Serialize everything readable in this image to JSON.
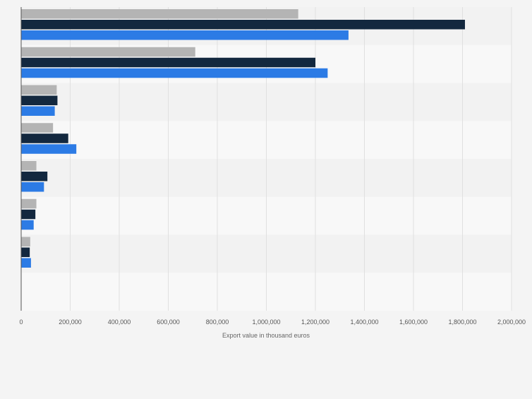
{
  "chart_data": {
    "type": "bar",
    "orientation": "horizontal",
    "xlabel": "Export value in thousand euros",
    "xlim": [
      0,
      2000000
    ],
    "xticks": [
      0,
      200000,
      400000,
      600000,
      800000,
      1000000,
      1200000,
      1400000,
      1600000,
      1800000,
      2000000
    ],
    "xtick_labels": [
      "0",
      "200,000",
      "400,000",
      "600,000",
      "800,000",
      "1,000,000",
      "1,200,000",
      "1,400,000",
      "1,600,000",
      "1,800,000",
      "2,000,000"
    ],
    "grid": true,
    "category_count": 8,
    "series": [
      {
        "color": "#b4b4b4",
        "values": [
          1130000,
          710000,
          145000,
          130000,
          62000,
          62000,
          37000,
          null
        ]
      },
      {
        "color": "#13283f",
        "values": [
          1810000,
          1200000,
          148000,
          192000,
          107000,
          58000,
          35000,
          null
        ]
      },
      {
        "color": "#2c7be5",
        "values": [
          1335000,
          1250000,
          137000,
          225000,
          93000,
          51000,
          40000,
          null
        ]
      }
    ]
  }
}
